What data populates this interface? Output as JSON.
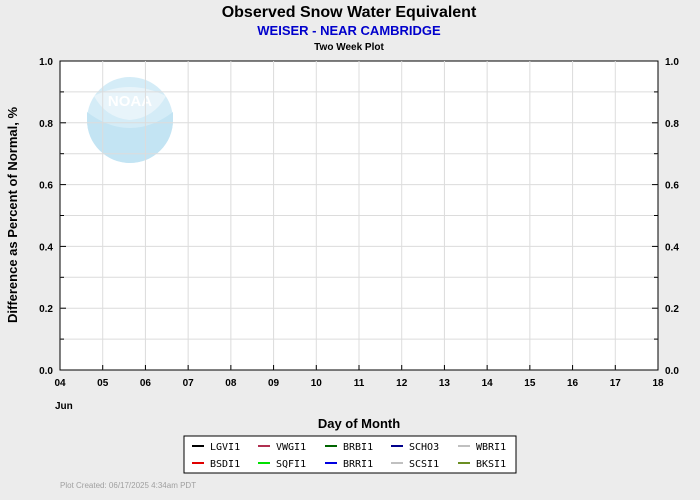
{
  "chart_data": {
    "type": "line",
    "title": "Observed Snow Water Equivalent",
    "subtitle": "WEISER - NEAR CAMBRIDGE",
    "subsubtitle": "Two Week Plot",
    "xlabel": "Day of Month",
    "ylabel": "Difference as Percent of Normal, %",
    "x_ticks": [
      "04",
      "05",
      "06",
      "07",
      "08",
      "09",
      "10",
      "11",
      "12",
      "13",
      "14",
      "15",
      "16",
      "17",
      "18"
    ],
    "x_month_label": "Jun",
    "ylim": [
      0.0,
      1.0
    ],
    "y_ticks": [
      "0.0",
      "0.2",
      "0.4",
      "0.6",
      "0.8",
      "1.0"
    ],
    "grid": true,
    "legend_placement": "bottom",
    "series": [
      {
        "name": "LGVI1",
        "color": "#000000",
        "values": []
      },
      {
        "name": "VWGI1",
        "color": "#b03050",
        "values": []
      },
      {
        "name": "BRBI1",
        "color": "#006400",
        "values": []
      },
      {
        "name": "SCHO3",
        "color": "#00008b",
        "values": []
      },
      {
        "name": "WBRI1",
        "color": "#c0c0c0",
        "values": []
      },
      {
        "name": "BSDI1",
        "color": "#e00000",
        "values": []
      },
      {
        "name": "SQFI1",
        "color": "#00e000",
        "values": []
      },
      {
        "name": "BRRI1",
        "color": "#0000e0",
        "values": []
      },
      {
        "name": "SCSI1",
        "color": "#c0c0c0",
        "values": []
      },
      {
        "name": "BKSI1",
        "color": "#6b8e23",
        "values": []
      }
    ]
  },
  "logo": {
    "text": "NOAA",
    "icon": "noaa-logo-icon"
  },
  "footer": "Plot Created: 06/17/2025 4:34am PDT"
}
